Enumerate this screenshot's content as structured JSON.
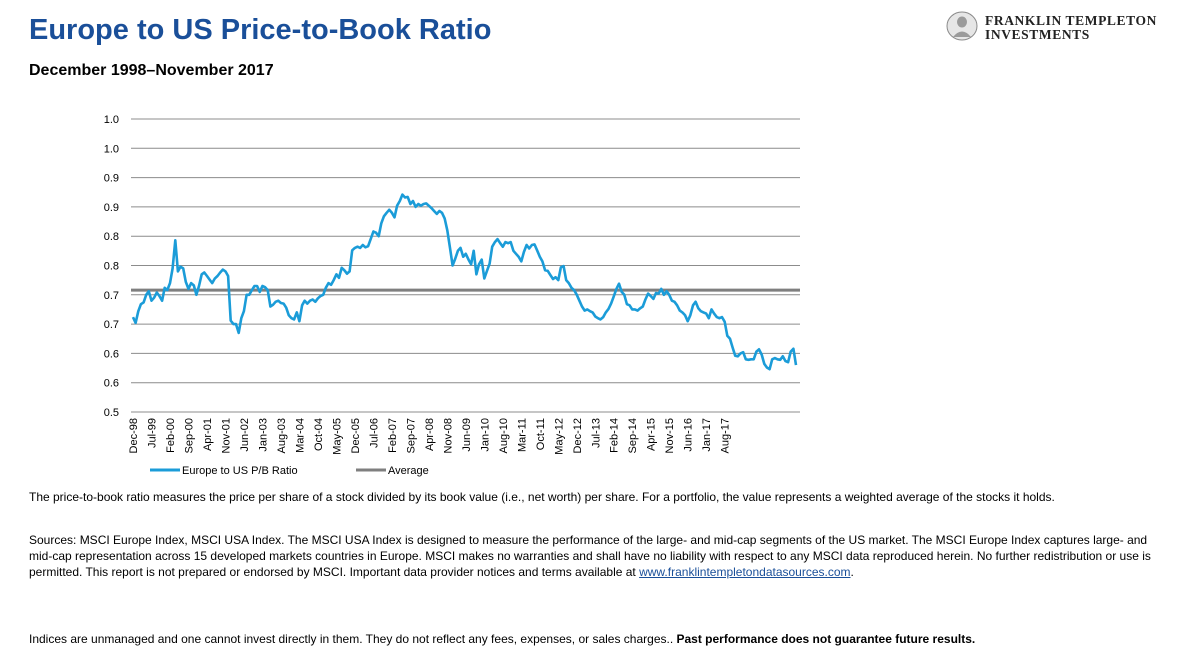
{
  "title": "Europe to US Price-to-Book Ratio",
  "subtitle": "December 1998–November 2017",
  "logo": {
    "line1": "FRANKLIN TEMPLETON",
    "line2": "INVESTMENTS"
  },
  "chart_data": {
    "type": "line",
    "y_tick_labels": [
      "0.5",
      "0.6",
      "0.6",
      "0.7",
      "0.7",
      "0.8",
      "0.8",
      "0.9",
      "0.9",
      "1.0",
      "1.0"
    ],
    "ylim": [
      0.5,
      1.0
    ],
    "grid": true,
    "x_tick_labels": [
      "Dec-98",
      "Jul-99",
      "Feb-00",
      "Sep-00",
      "Apr-01",
      "Nov-01",
      "Jun-02",
      "Jan-03",
      "Aug-03",
      "Mar-04",
      "Oct-04",
      "May-05",
      "Dec-05",
      "Jul-06",
      "Feb-07",
      "Sep-07",
      "Apr-08",
      "Nov-08",
      "Jun-09",
      "Jan-10",
      "Aug-10",
      "Mar-11",
      "Oct-11",
      "May-12",
      "Dec-12",
      "Jul-13",
      "Feb-14",
      "Sep-14",
      "Apr-15",
      "Nov-15",
      "Jun-16",
      "Jan-17",
      "Aug-17"
    ],
    "legend_position": "bottom-left",
    "series": [
      {
        "name": "Europe to US P/B Ratio",
        "color": "#1b9cd8",
        "start": "Dec-98",
        "end": "Nov-17",
        "frequency": "monthly",
        "values": [
          0.662,
          0.652,
          0.672,
          0.684,
          0.687,
          0.7,
          0.706,
          0.69,
          0.695,
          0.704,
          0.698,
          0.69,
          0.712,
          0.708,
          0.72,
          0.745,
          0.793,
          0.74,
          0.748,
          0.745,
          0.722,
          0.71,
          0.72,
          0.716,
          0.7,
          0.715,
          0.735,
          0.738,
          0.732,
          0.726,
          0.72,
          0.728,
          0.732,
          0.738,
          0.743,
          0.74,
          0.732,
          0.656,
          0.65,
          0.65,
          0.635,
          0.66,
          0.672,
          0.7,
          0.7,
          0.708,
          0.715,
          0.715,
          0.705,
          0.715,
          0.713,
          0.708,
          0.68,
          0.683,
          0.688,
          0.69,
          0.686,
          0.685,
          0.678,
          0.665,
          0.66,
          0.658,
          0.67,
          0.655,
          0.682,
          0.69,
          0.685,
          0.69,
          0.692,
          0.688,
          0.694,
          0.698,
          0.7,
          0.712,
          0.72,
          0.717,
          0.725,
          0.735,
          0.729,
          0.746,
          0.742,
          0.736,
          0.74,
          0.776,
          0.78,
          0.782,
          0.78,
          0.785,
          0.781,
          0.783,
          0.795,
          0.808,
          0.806,
          0.8,
          0.822,
          0.834,
          0.84,
          0.845,
          0.84,
          0.832,
          0.852,
          0.86,
          0.871,
          0.866,
          0.867,
          0.855,
          0.86,
          0.85,
          0.855,
          0.852,
          0.855,
          0.856,
          0.852,
          0.848,
          0.843,
          0.838,
          0.843,
          0.84,
          0.83,
          0.81,
          0.78,
          0.75,
          0.762,
          0.775,
          0.78,
          0.765,
          0.77,
          0.76,
          0.752,
          0.775,
          0.735,
          0.752,
          0.76,
          0.728,
          0.741,
          0.753,
          0.782,
          0.79,
          0.795,
          0.788,
          0.782,
          0.79,
          0.788,
          0.79,
          0.775,
          0.77,
          0.765,
          0.757,
          0.773,
          0.785,
          0.779,
          0.785,
          0.786,
          0.776,
          0.765,
          0.757,
          0.742,
          0.741,
          0.734,
          0.727,
          0.73,
          0.725,
          0.747,
          0.749,
          0.725,
          0.72,
          0.712,
          0.708,
          0.7,
          0.69,
          0.68,
          0.673,
          0.675,
          0.672,
          0.67,
          0.663,
          0.66,
          0.658,
          0.662,
          0.67,
          0.676,
          0.685,
          0.697,
          0.71,
          0.719,
          0.705,
          0.7,
          0.684,
          0.682,
          0.675,
          0.675,
          0.673,
          0.677,
          0.68,
          0.692,
          0.702,
          0.698,
          0.693,
          0.703,
          0.702,
          0.71,
          0.7,
          0.706,
          0.7,
          0.69,
          0.688,
          0.682,
          0.673,
          0.67,
          0.665,
          0.655,
          0.665,
          0.682,
          0.688,
          0.677,
          0.672,
          0.67,
          0.668,
          0.66,
          0.675,
          0.668,
          0.662,
          0.66,
          0.662,
          0.654,
          0.63,
          0.625,
          0.61,
          0.596,
          0.595,
          0.6,
          0.602,
          0.59,
          0.589,
          0.59,
          0.59,
          0.603,
          0.607,
          0.598,
          0.582,
          0.576,
          0.573,
          0.59,
          0.592,
          0.59,
          0.589,
          0.595,
          0.587,
          0.585,
          0.603,
          0.608,
          0.58
        ]
      },
      {
        "name": "Average",
        "color": "#7f7f7f",
        "constant": 0.708
      }
    ]
  },
  "notes": {
    "p1": "The price-to-book ratio measures the price per share of a stock divided by its book value (i.e., net worth) per share. For a portfolio, the value represents a weighted average of the stocks it holds.",
    "p2": "Sources: MSCI Europe Index, MSCI USA Index. The MSCI USA Index is designed to measure the performance of the large- and mid-cap segments of the US market. The MSCI Europe Index captures large- and mid-cap representation across 15 developed markets countries in Europe. MSCI makes no warranties and shall have no liability with respect to any MSCI data reproduced herein. No further redistribution or use is permitted. This report is not prepared or endorsed by MSCI. Important data provider notices and terms available at",
    "p2_link": "www.franklintempletondatasources.com",
    "p2_end": ".",
    "p3": "Indices are unmanaged and one cannot invest directly in them. They do not reflect any fees, expenses, or sales charges.. ",
    "p3_bold": "Past performance does not guarantee future results."
  }
}
